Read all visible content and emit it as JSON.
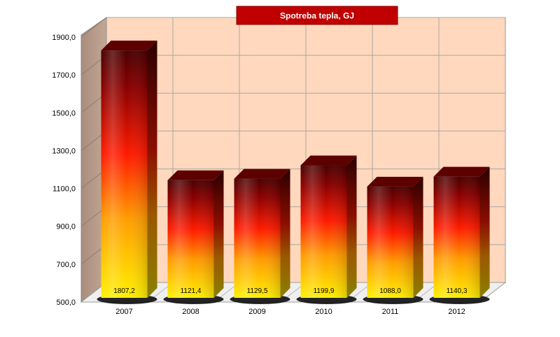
{
  "chart_data": {
    "type": "bar",
    "title": "Spotreba tepla, GJ",
    "categories": [
      "2007",
      "2008",
      "2009",
      "2010",
      "2011",
      "2012"
    ],
    "values": [
      1807.2,
      1121.4,
      1129.5,
      1199.9,
      1088.0,
      1140.3
    ],
    "value_labels": [
      "1807,2",
      "1121,4",
      "1129,5",
      "1199,9",
      "1088,0",
      "1140,3"
    ],
    "ylim": [
      500,
      1900
    ],
    "yticks": [
      500,
      700,
      900,
      1100,
      1300,
      1500,
      1700,
      1900
    ],
    "ytick_labels": [
      "500,0",
      "700,0",
      "900,0",
      "1100,0",
      "1300,0",
      "1500,0",
      "1700,0",
      "1900,0"
    ],
    "grid": true,
    "legend": "none",
    "style": "3d-cylinder-gradient"
  },
  "colors": {
    "plot_back": "#ffd8bd",
    "side_wall": "#b09585",
    "floor": "#f0f0f0",
    "grid": "#a8a8a8",
    "title_bg": "#c00000",
    "bar_bottom": "#ffef00",
    "bar_mid_orange": "#ff9c00",
    "bar_mid_red": "#ff1a00",
    "bar_dark": "#5a0000"
  }
}
